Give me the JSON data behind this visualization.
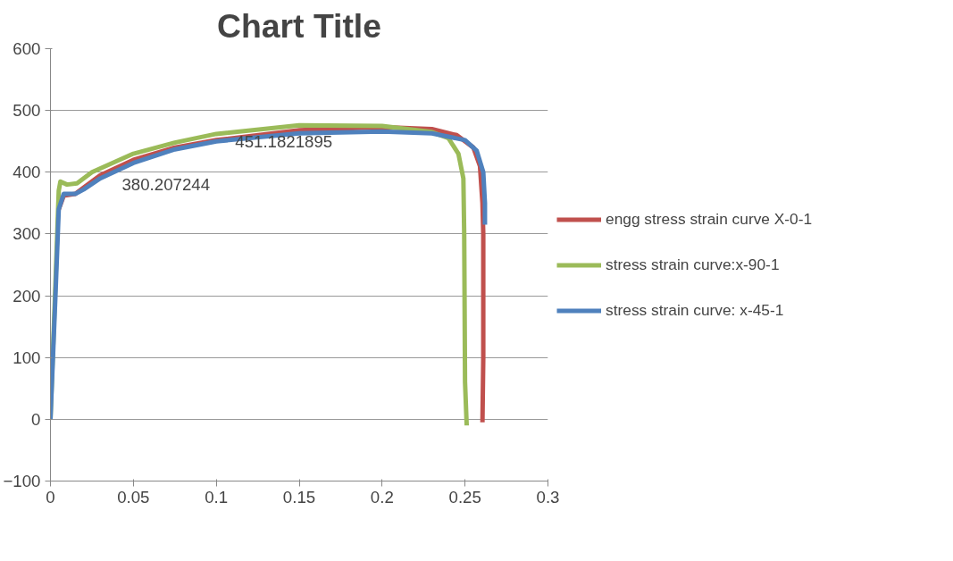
{
  "chart_data": {
    "type": "line",
    "title": "Chart Title",
    "xlim": [
      0,
      0.3
    ],
    "xticks": [
      0,
      0.05,
      0.1,
      0.15,
      0.2,
      0.25,
      0.3
    ],
    "ylim": [
      -100,
      600
    ],
    "yticks": [
      -100,
      0,
      100,
      200,
      300,
      400,
      500,
      600
    ],
    "grid": "y",
    "legend": "right",
    "marker": "none",
    "line_style": "solid",
    "series": [
      {
        "name": "engg stress strain curve X-0-1",
        "color": "#c0504d",
        "x": [
          0.005,
          0.008,
          0.015,
          0.02,
          0.03,
          0.05,
          0.075,
          0.1,
          0.15,
          0.2,
          0.23,
          0.245,
          0.255,
          0.259,
          0.2605,
          0.261,
          0.261,
          0.2605
        ],
        "values": [
          340,
          362,
          365,
          375,
          395,
          420,
          440,
          452,
          468,
          473,
          470,
          460,
          440,
          410,
          350,
          300,
          100,
          -5
        ]
      },
      {
        "name": "stress strain curve:x-90-1",
        "color": "#9bbb59",
        "x": [
          0,
          0.003,
          0.005,
          0.006,
          0.01,
          0.016,
          0.025,
          0.05,
          0.075,
          0.1,
          0.15,
          0.2,
          0.23,
          0.24,
          0.246,
          0.249,
          0.2495,
          0.25,
          0.251
        ],
        "values": [
          0,
          220,
          370,
          385,
          380,
          382,
          400,
          430,
          448,
          462,
          476,
          475,
          465,
          455,
          430,
          390,
          300,
          60,
          -10
        ]
      },
      {
        "name": "stress strain curve: x-45-1",
        "color": "#4f81bd",
        "x": [
          0,
          0.003,
          0.005,
          0.008,
          0.015,
          0.02,
          0.03,
          0.05,
          0.075,
          0.1,
          0.15,
          0.2,
          0.23,
          0.25,
          0.257,
          0.261,
          0.262,
          0.262
        ],
        "values": [
          0,
          200,
          340,
          365,
          365,
          372,
          390,
          415,
          437,
          450,
          463,
          466,
          463,
          452,
          435,
          400,
          350,
          315
        ]
      }
    ],
    "annotations": [
      "380.207244",
      "451.1821895"
    ]
  }
}
